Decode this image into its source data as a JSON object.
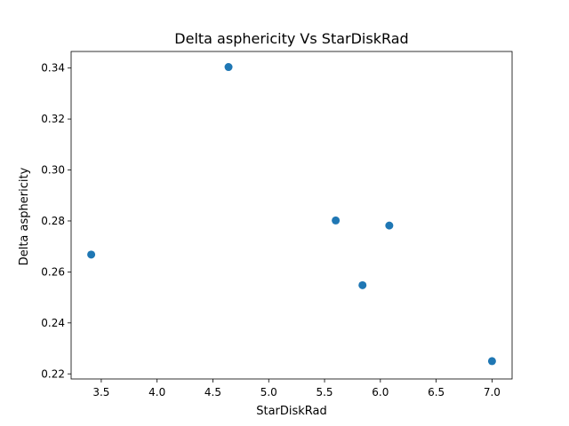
{
  "chart_data": {
    "type": "scatter",
    "title": "Delta asphericity Vs StarDiskRad",
    "xlabel": "StarDiskRad",
    "ylabel": "Delta asphericity",
    "xlim": [
      3.23,
      7.18
    ],
    "ylim": [
      0.218,
      0.3465
    ],
    "x_ticks": [
      "3.5",
      "4.0",
      "4.5",
      "5.0",
      "5.5",
      "6.0",
      "6.5",
      "7.0"
    ],
    "y_ticks": [
      "0.22",
      "0.24",
      "0.26",
      "0.28",
      "0.30",
      "0.32",
      "0.34"
    ],
    "grid": false,
    "marker_color": "#1f77b4",
    "series": [
      {
        "points": [
          {
            "x": 3.41,
            "y": 0.2668
          },
          {
            "x": 4.64,
            "y": 0.3404
          },
          {
            "x": 5.6,
            "y": 0.2802
          },
          {
            "x": 5.84,
            "y": 0.2548
          },
          {
            "x": 6.08,
            "y": 0.2782
          },
          {
            "x": 7.0,
            "y": 0.225
          }
        ]
      }
    ]
  }
}
